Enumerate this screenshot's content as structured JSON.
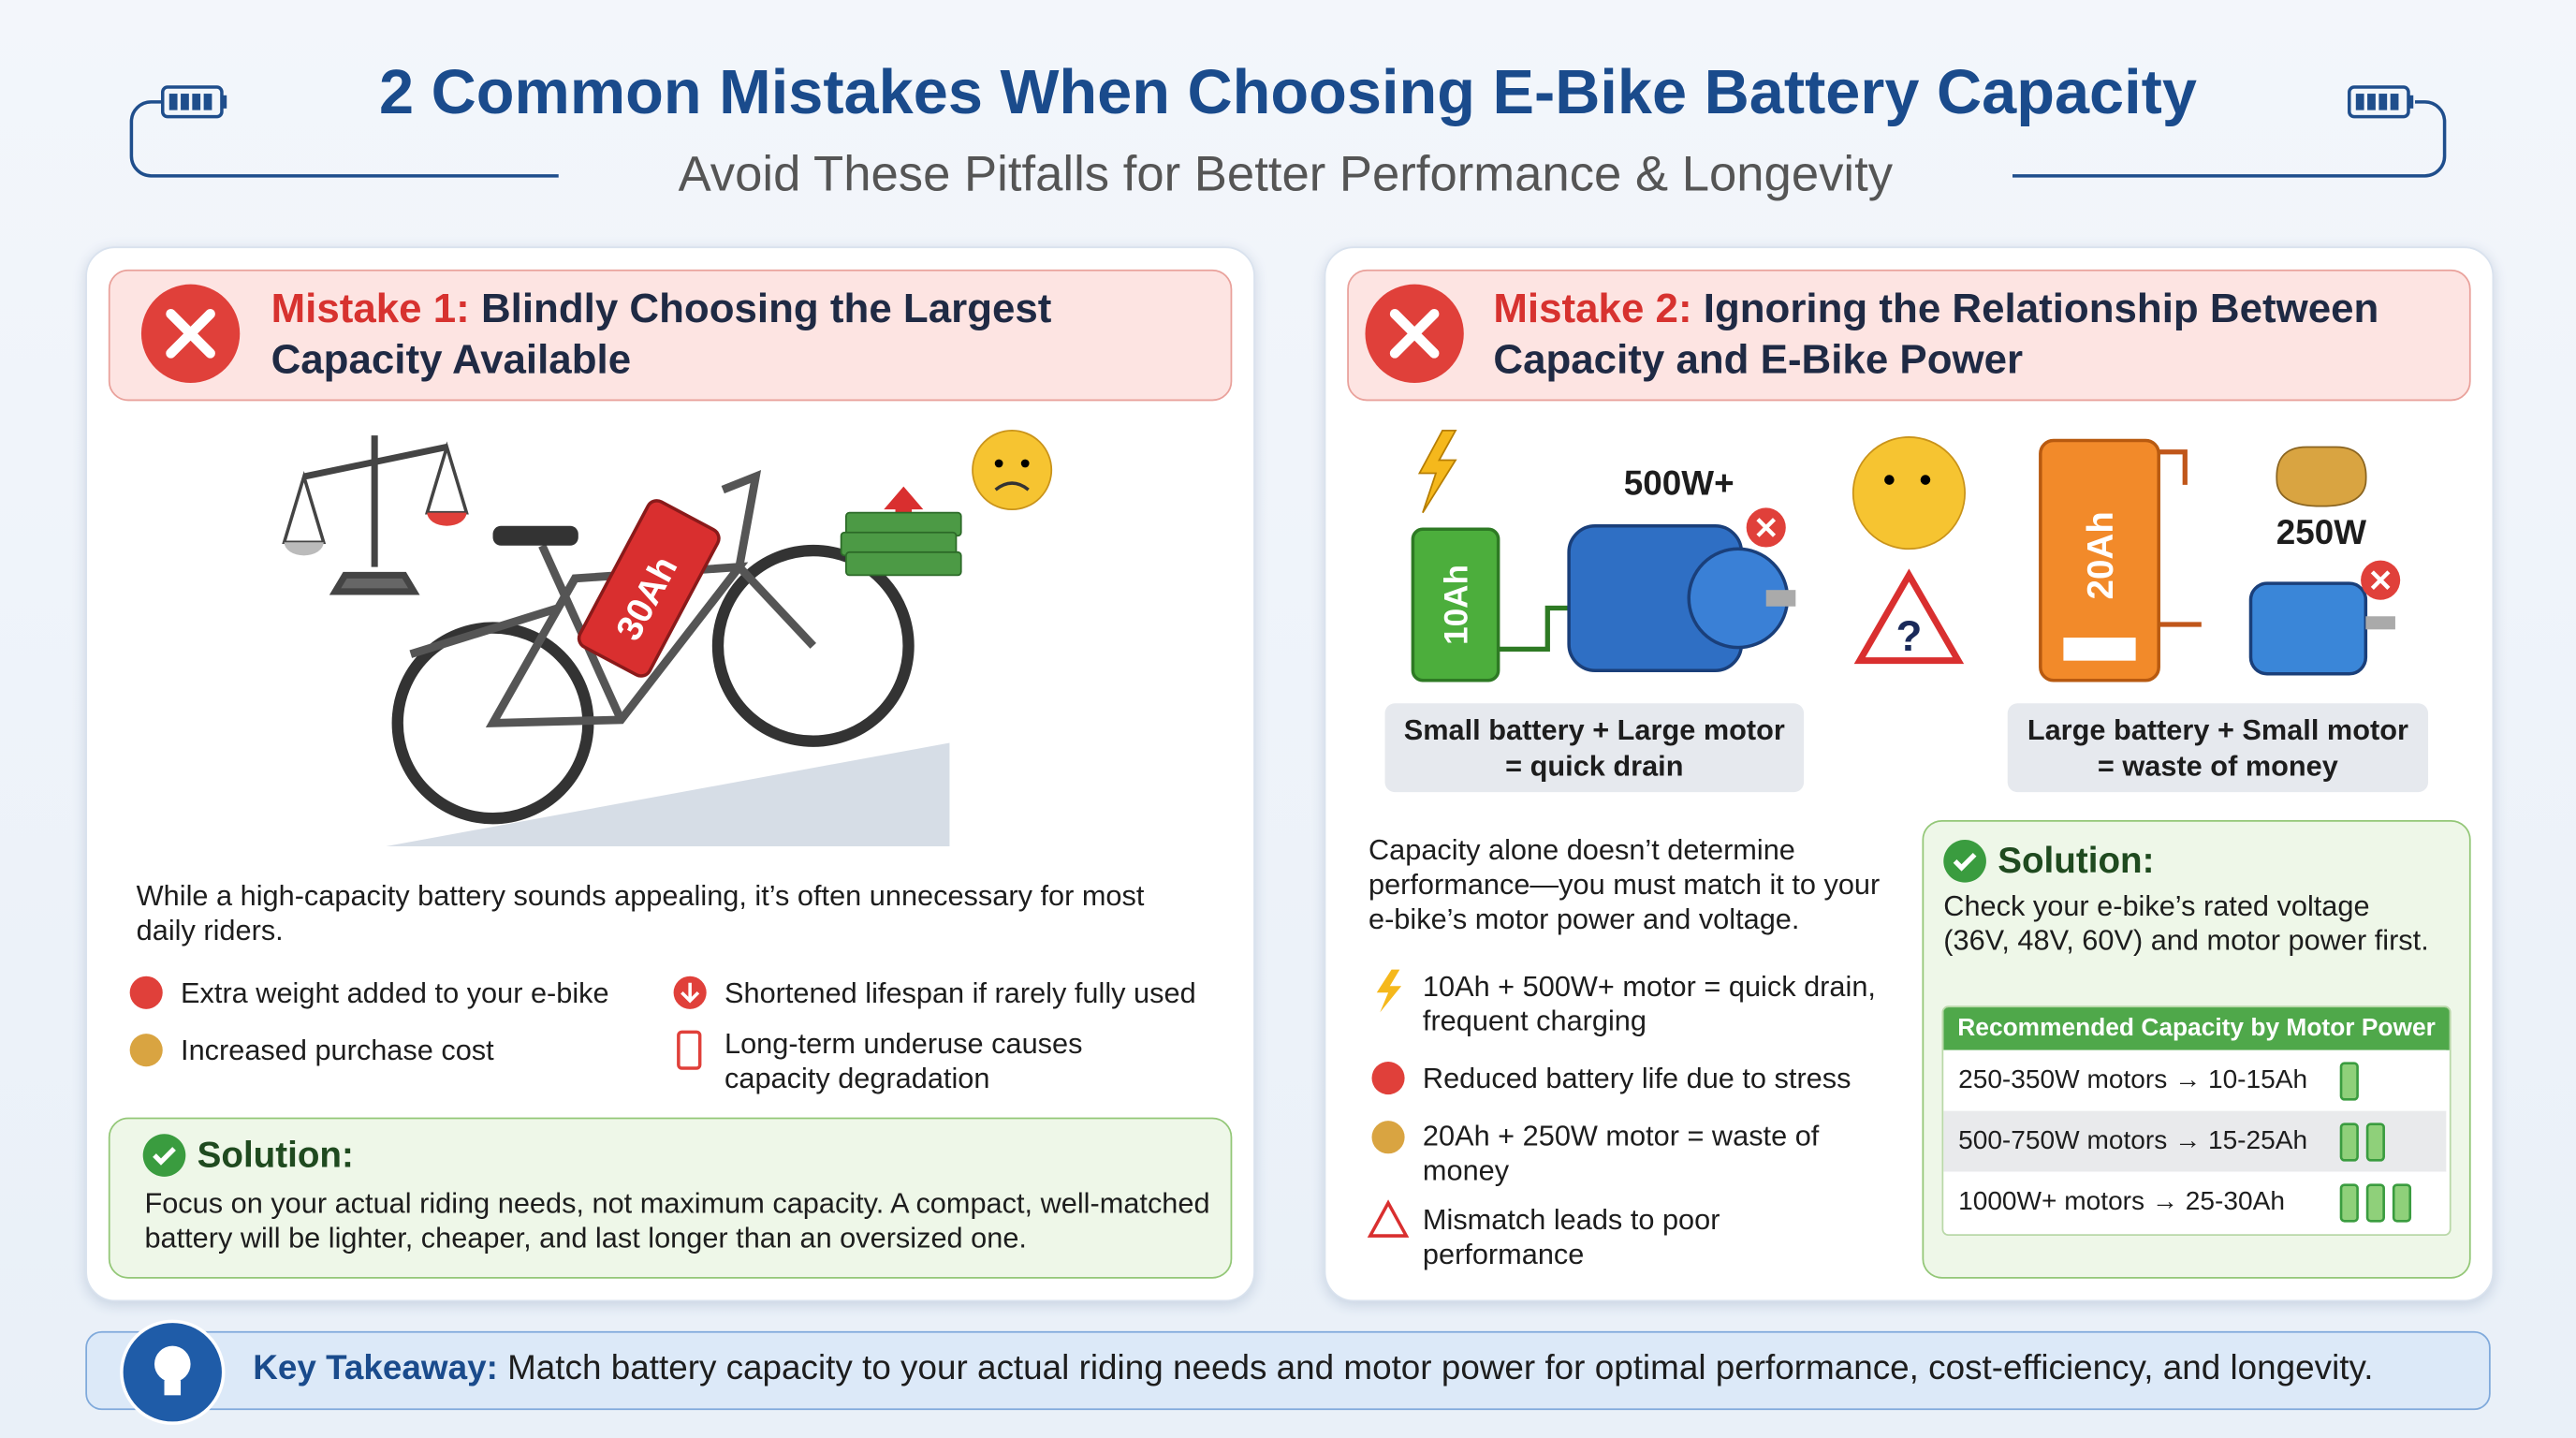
{
  "header": {
    "title": "2 Common Mistakes When Choosing E-Bike Battery Capacity",
    "subtitle": "Avoid These Pitfalls for Better Performance & Longevity"
  },
  "mistakes": [
    {
      "label": "Mistake 1:",
      "title": "Blindly Choosing the Largest Capacity Available",
      "battery_label": "30Ah",
      "description": "While a high-capacity battery sounds appealing, it’s often unnecessary for most daily riders.",
      "points": [
        "Extra weight added to your e-bike",
        "Shortened lifespan if rarely fully used",
        "Increased purchase cost",
        "Long-term underuse causes capacity degradation"
      ],
      "solution": {
        "heading": "Solution:",
        "text": "Focus on your actual riding needs, not maximum capacity. A compact, well-matched battery will be lighter, cheaper, and last longer than an oversized one."
      }
    },
    {
      "label": "Mistake 2:",
      "title": "Ignoring the Relationship Between Capacity and E-Bike Power",
      "scenarios": [
        {
          "battery": "10Ah",
          "motor": "500W+",
          "caption": [
            "Small battery + Large motor",
            "= quick drain"
          ]
        },
        {
          "battery": "20Ah",
          "motor": "250W",
          "caption": [
            "Large battery + Small motor",
            "= waste of money"
          ]
        }
      ],
      "description": "Capacity alone doesn’t determine performance—you must match it to your e-bike’s motor power and voltage.",
      "points": [
        "10Ah + 500W+ motor = quick drain, frequent charging",
        "Reduced battery life due to stress",
        "20Ah + 250W motor = waste of money",
        "Mismatch leads to poor performance"
      ],
      "solution": {
        "heading": "Solution:",
        "text": "Check your e-bike’s rated voltage (36V, 48V, 60V) and motor power first.",
        "table": {
          "title": "Recommended Capacity by Motor Power",
          "rows": [
            "250-350W motors → 10-15Ah",
            "500-750W motors → 15-25Ah",
            "1000W+ motors → 25-30Ah"
          ]
        }
      }
    }
  ],
  "takeaway": {
    "label": "Key Takeaway:",
    "text": "Match battery capacity to your actual riding needs and motor power for optimal performance, cost-efficiency, and longevity."
  }
}
